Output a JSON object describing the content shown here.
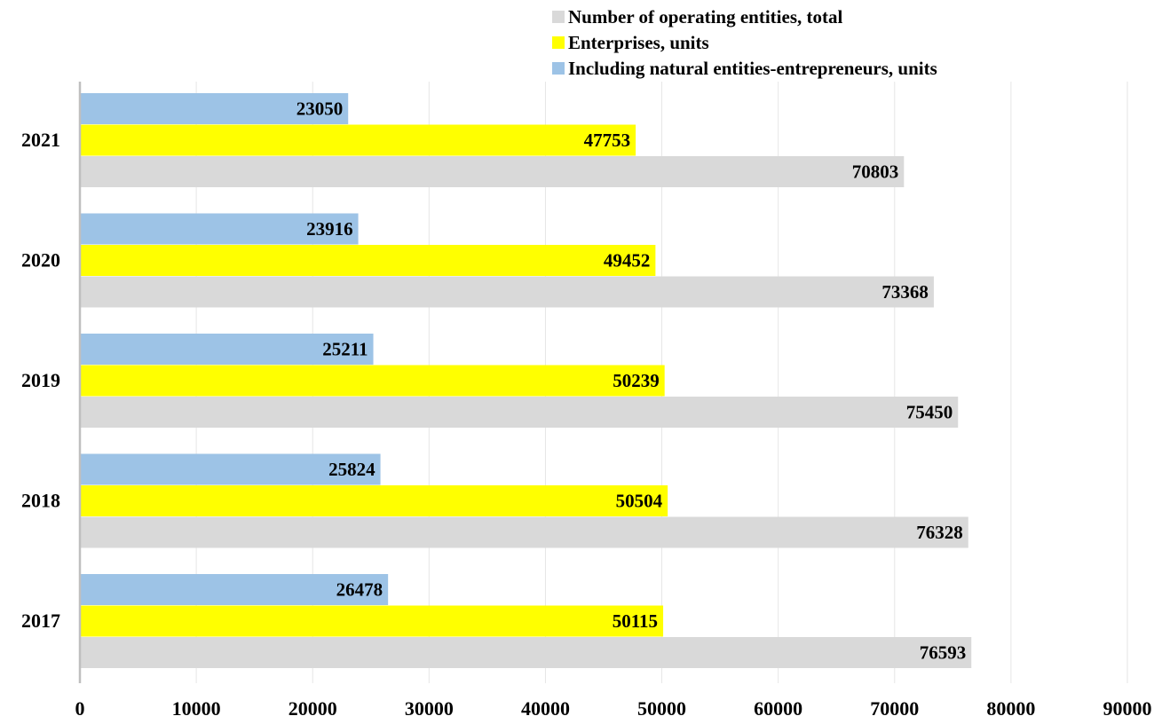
{
  "chart_data": {
    "type": "bar",
    "orientation": "horizontal",
    "title": "",
    "xlabel": "",
    "ylabel": "",
    "categories": [
      "2021",
      "2020",
      "2019",
      "2018",
      "2017"
    ],
    "series": [
      {
        "name": "Including natural entities-entrepreneurs, units",
        "color": "#9dc3e6",
        "values": [
          23050,
          23916,
          25211,
          25824,
          26478
        ]
      },
      {
        "name": "Enterprises, units",
        "color": "#ffff00",
        "values": [
          47753,
          49452,
          50239,
          50504,
          50115
        ]
      },
      {
        "name": "Number of operating entities, total",
        "color": "#d9d9d9",
        "values": [
          70803,
          73368,
          75450,
          76328,
          76593
        ]
      }
    ],
    "xlim": [
      0,
      90000
    ],
    "xticks": [
      0,
      10000,
      20000,
      30000,
      40000,
      50000,
      60000,
      70000,
      80000,
      90000
    ],
    "xtick_labels": [
      "0",
      "10000",
      "20000",
      "30000",
      "40000",
      "50000",
      "60000",
      "70000",
      "80000",
      "90000"
    ],
    "grid": "vertical",
    "legend_position": "top-right",
    "data_labels": true
  }
}
